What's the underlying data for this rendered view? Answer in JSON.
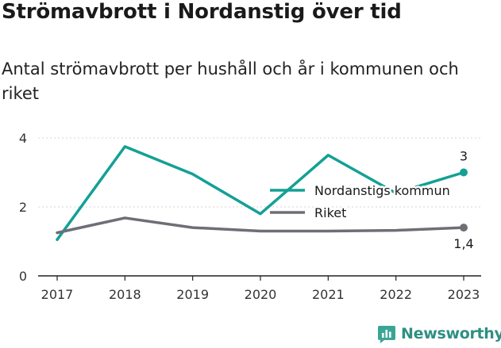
{
  "header": {
    "title": "Strömavbrott i Nordanstig över tid",
    "subtitle": "Antal strömavbrott per hushåll och år i kommunen och riket"
  },
  "brand": {
    "name": "Newsworthy",
    "icon": "newsworthy-logo-icon",
    "color": "#2e8f82"
  },
  "chart_data": {
    "type": "line",
    "title": "Strömavbrott i Nordanstig över tid",
    "subtitle": "Antal strömavbrott per hushåll och år i kommunen och riket",
    "xlabel": "",
    "ylabel": "",
    "x": [
      2017,
      2018,
      2019,
      2020,
      2021,
      2022,
      2023
    ],
    "xlim": [
      2017,
      2023
    ],
    "ylim": [
      0,
      4
    ],
    "yticks": [
      0,
      2,
      4
    ],
    "grid": true,
    "legend_position": "right",
    "series": [
      {
        "name": "Nordanstigs kommun",
        "color": "#14a095",
        "values": [
          1.05,
          3.75,
          2.95,
          1.8,
          3.5,
          2.4,
          3.0
        ],
        "end_label": "3"
      },
      {
        "name": "Riket",
        "color": "#6e6e76",
        "values": [
          1.25,
          1.68,
          1.4,
          1.3,
          1.3,
          1.32,
          1.4
        ],
        "end_label": "1,4"
      }
    ]
  }
}
